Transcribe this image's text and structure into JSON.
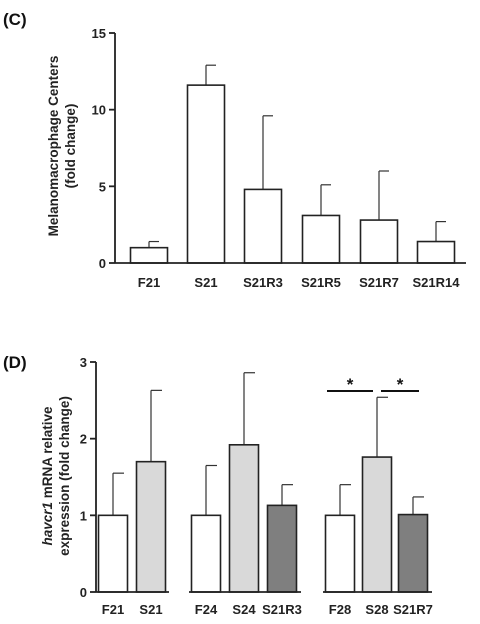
{
  "chart_data": [
    {
      "type": "bar",
      "panel_label": "(C)",
      "ylabel_lines": [
        "Melanomacrophage Centers",
        "(fold change)"
      ],
      "ylim": [
        0,
        15
      ],
      "yticks": [
        "0",
        "5",
        "10",
        "15"
      ],
      "categories": [
        "F21",
        "S21",
        "S21R3",
        "S21R5",
        "S21R7",
        "S21R14"
      ],
      "values": [
        1.0,
        11.6,
        4.8,
        3.1,
        2.8,
        1.4
      ],
      "error": [
        0.4,
        1.3,
        4.8,
        2.0,
        3.2,
        1.3
      ],
      "bar_fills": [
        "#ffffff",
        "#ffffff",
        "#ffffff",
        "#ffffff",
        "#ffffff",
        "#ffffff"
      ],
      "grid": false
    },
    {
      "type": "bar",
      "panel_label": "(D)",
      "ylabel_italic": "havcr1",
      "ylabel_line1_rest": " mRNA relative",
      "ylabel_line2": "expression (fold change)",
      "ylim": [
        0,
        3
      ],
      "yticks": [
        "0",
        "1",
        "2",
        "3"
      ],
      "categories": [
        "F21",
        "S21",
        "F24",
        "S24",
        "S21R3",
        "F28",
        "S28",
        "S21R7"
      ],
      "groups": [
        2,
        3,
        3
      ],
      "values": [
        1.0,
        1.7,
        1.0,
        1.92,
        1.13,
        1.0,
        1.76,
        1.01
      ],
      "error": [
        0.55,
        0.93,
        0.65,
        0.94,
        0.27,
        0.4,
        0.78,
        0.23
      ],
      "bar_fills": [
        "#ffffff",
        "#d9d9d9",
        "#ffffff",
        "#d9d9d9",
        "#7f7f7f",
        "#ffffff",
        "#d9d9d9",
        "#7f7f7f"
      ],
      "significance": [
        {
          "from": "F28",
          "to": "S28",
          "label": "*"
        },
        {
          "from": "S28",
          "to": "S21R7",
          "label": "*"
        }
      ],
      "grid": false
    }
  ]
}
